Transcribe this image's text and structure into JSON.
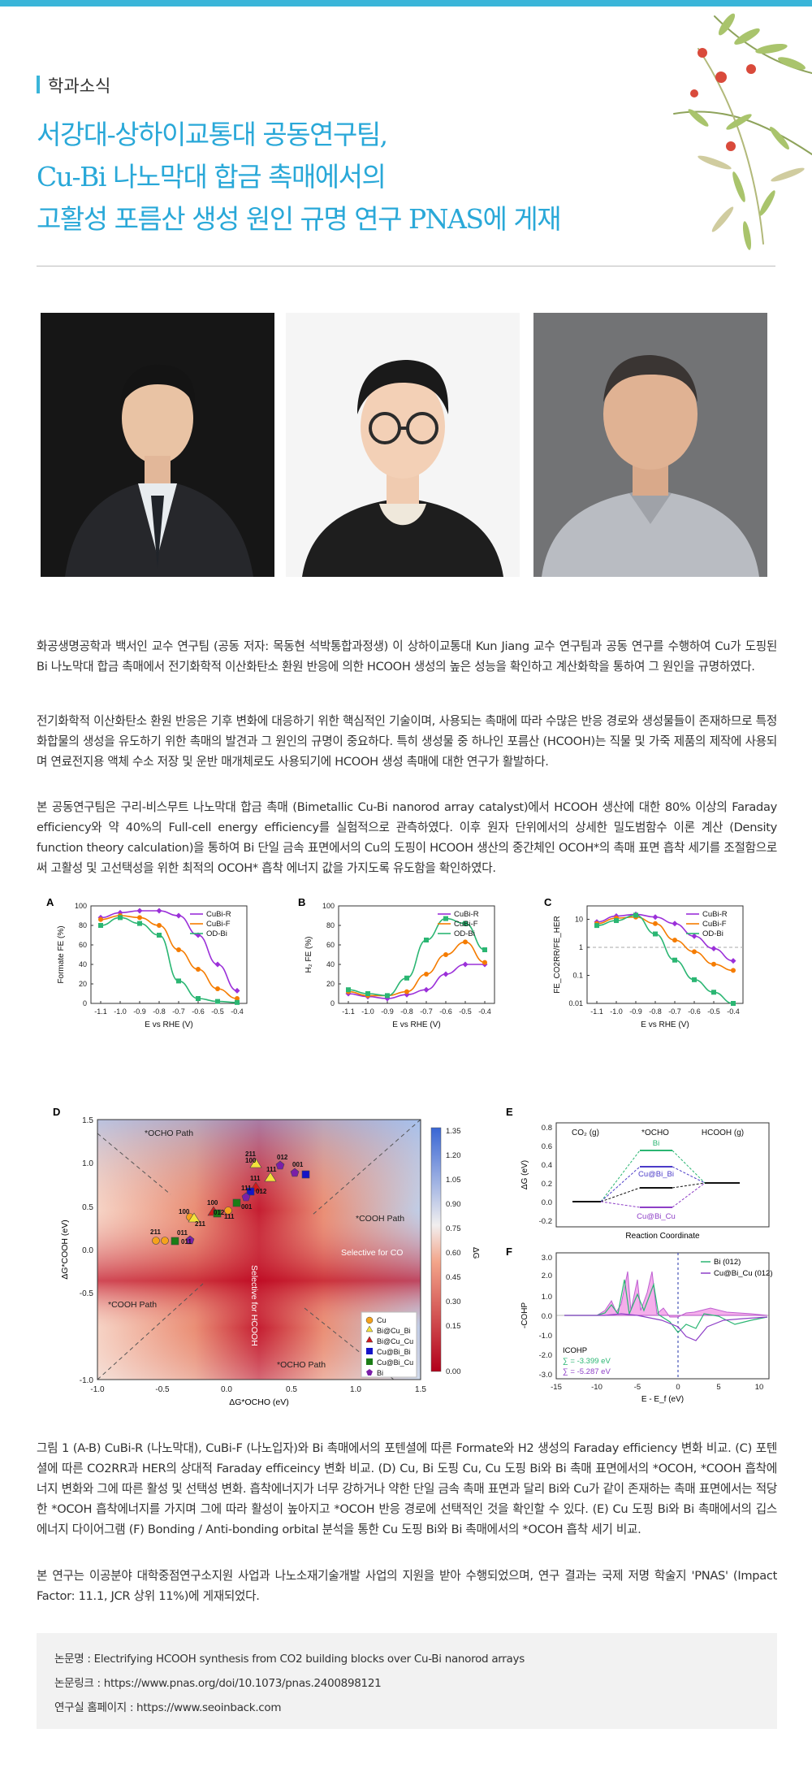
{
  "header": {
    "section_label": "학과소식",
    "title_lines": [
      "서강대-상하이교통대 공동연구팀,",
      "Cu-Bi 나노막대 합금 촉매에서의",
      "고활성 포름산 생성 원인 규명 연구 PNAS에 게재"
    ]
  },
  "paragraphs": [
    "화공생명공학과 백서인 교수 연구팀 (공동 저자: 목동현 석박통합과정생) 이 상하이교통대 Kun Jiang 교수 연구팀과 공동 연구를 수행하여 Cu가 도핑된 Bi 나노막대 합금 촉매에서 전기화학적 이산화탄소 환원 반응에 의한 HCOOH 생성의 높은 성능을 확인하고 계산화학을 통하여 그 원인을 규명하였다.",
    "전기화학적 이산화탄소 환원 반응은 기후 변화에 대응하기 위한 핵심적인 기술이며, 사용되는 촉매에 따라 수많은 반응 경로와 생성물들이 존재하므로 특정 화합물의 생성을 유도하기 위한 촉매의 발견과 그 원인의 규명이 중요하다. 특히 생성물 중 하나인 포름산 (HCOOH)는 직물 및 가죽 제품의 제작에 사용되며 연료전지용 액체 수소 저장 및 운반 매개체로도 사용되기에 HCOOH 생성 촉매에 대한 연구가 활발하다.",
    "본 공동연구팀은 구리-비스무트 나노막대 합금 촉매 (Bimetallic Cu-Bi nanorod array catalyst)에서 HCOOH 생산에 대한 80% 이상의 Faraday efficiency와 약 40%의 Full-cell energy efficiency를 실험적으로 관측하였다. 이후 원자 단위에서의 상세한 밀도범함수 이론 계산 (Density function theory calculation)을 통하여 Bi 단일 금속 표면에서의 Cu의 도핑이 HCOOH 생산의 중간체인 OCOH*의 촉매 표면 흡착 세기를 조절함으로써 고활성 및 고선택성을 위한 최적의 OCOH* 흡착 에너지 값을 가지도록 유도함을 확인하였다."
  ],
  "caption": "그림 1  (A-B) CuBi-R (나노막대), CuBi-F (나노입자)와 Bi 촉매에서의 포텐셜에 따른 Formate와 H2 생성의 Faraday efficiency 변화 비교. (C) 포텐셜에 따른 CO2RR과 HER의 상대적 Faraday efficeincy 변화 비교. (D) Cu, Bi 도핑 Cu, Cu 도핑 Bi와 Bi 촉매 표면에서의 *OCOH, *COOH 흡착에너지 변화와 그에 따른 활성 및 선택성 변화. 흡착에너지가 너무 강하거나 약한 단일 금속 촉매 표면과 달리 Bi와 Cu가 같이 존재하는 촉매 표면에서는 적당한 *OCOH 흡착에너지를 가지며 그에 따라 활성이 높아지고 *OCOH 반응 경로에 선택적인 것을 확인할 수 있다. (E) Cu 도핑 Bi와 Bi 촉매에서의 깁스 에너지 다이어그램 (F) Bonding / Anti-bonding orbital 분석을 통한 Cu 도핑 Bi와 Bi 촉매에서의 *OCOH 흡착 세기 비교.",
  "acknowledgement": "본 연구는 이공분야 대학중점연구소지원 사업과 나노소재기술개발 사업의 지원을 받아 수행되었으며, 연구 결과는 국제 저명 학술지 'PNAS' (Impact Factor: 11.1, JCR 상위 11%)에 게재되었다.",
  "info": {
    "paper": "논문명 : Electrifying HCOOH synthesis from CO2 building blocks over Cu-Bi nanorod arrays",
    "link": "논문링크 : https://www.pnas.org/doi/10.1073/pnas.2400898121",
    "lab": "연구실 홈페이지 : https://www.seoinback.com"
  },
  "figure": {
    "panel_labels": [
      "A",
      "B",
      "C",
      "D",
      "E",
      "F"
    ],
    "legend_series": [
      "CuBi-R",
      "CuBi-F",
      "OD-Bi"
    ],
    "series_colors": {
      "CuBi-R": "#9b30d9",
      "CuBi-F": "#f57c00",
      "OD-Bi": "#2bb673"
    },
    "x_axis_label": "E vs RHE (V)",
    "x_ticks": [
      "-1.1",
      "-1.0",
      "-0.9",
      "-0.8",
      "-0.7",
      "-0.6",
      "-0.5",
      "-0.4"
    ],
    "A": {
      "ylabel": "Formate FE (%)",
      "yticks": [
        "0",
        "20",
        "40",
        "60",
        "80",
        "100"
      ]
    },
    "B": {
      "ylabel": "H₂ FE (%)",
      "yticks": [
        "0",
        "20",
        "40",
        "60",
        "80",
        "100"
      ]
    },
    "C": {
      "ylabel": "FE_CO2RR/FE_HER",
      "yticks": [
        "0.01",
        "0.1",
        "1",
        "10"
      ]
    },
    "D": {
      "xlabel": "ΔG*OCHO (eV)",
      "ylabel": "ΔG*COOH (eV)",
      "xticks": [
        "-1.0",
        "-0.5",
        "0.0",
        "0.5",
        "1.0",
        "1.5"
      ],
      "yticks": [
        "1.5",
        "1.0",
        "0.5",
        "0.0",
        "-0.5",
        "-1.0"
      ],
      "colorbar_label": "ΔG",
      "colorbar_ticks": [
        "1.35",
        "1.20",
        "1.05",
        "0.90",
        "0.75",
        "0.60",
        "0.45",
        "0.30",
        "0.15",
        "0.00"
      ],
      "region_labels": [
        "*OCHO Path",
        "*COOH Path",
        "*COOH Path",
        "*OCHO Path",
        "Selective for CO",
        "Selective for HCOOH"
      ],
      "point_labels": [
        "012",
        "001",
        "211",
        "100",
        "111",
        "111",
        "012",
        "111",
        "100",
        "012",
        "111",
        "001",
        "100",
        "211",
        "211",
        "011",
        "011"
      ],
      "legend": [
        "Cu",
        "Bi@Cu_Bi",
        "Bi@Cu_Cu",
        "Cu@Bi_Bi",
        "Cu@Bi_Cu",
        "Bi"
      ]
    },
    "E": {
      "ylabel": "ΔG (eV)",
      "xlabel": "Reaction Coordinate",
      "yticks": [
        "0.8",
        "0.6",
        "0.4",
        "0.2",
        "0.0",
        "-0.2"
      ],
      "states": [
        "CO₂ (g)",
        "*OCHO",
        "HCOOH (g)"
      ],
      "level_labels": [
        "Bi",
        "Cu@Bi_Bi",
        "Cu@Bi_Cu"
      ]
    },
    "F": {
      "ylabel": "-COHP",
      "xlabel": "E - E_f (eV)",
      "xticks": [
        "-15",
        "-10",
        "-5",
        "0",
        "5",
        "10"
      ],
      "yticks": [
        "3.0",
        "2.0",
        "1.0",
        "0.0",
        "-1.0",
        "-2.0",
        "-3.0"
      ],
      "legend": [
        "Bi (012)",
        "Cu@Bi_Cu (012)"
      ],
      "icohp_title": "ICOHP",
      "icohp_values": [
        "∑ = -3.399 eV",
        "∑ = -5.287 eV"
      ]
    }
  },
  "chart_data": [
    {
      "type": "line",
      "title": "A",
      "xlabel": "E vs RHE (V)",
      "ylabel": "Formate FE (%)",
      "x": [
        -1.1,
        -1.0,
        -0.9,
        -0.8,
        -0.7,
        -0.6,
        -0.5,
        -0.4
      ],
      "ylim": [
        0,
        100
      ],
      "series": [
        {
          "name": "CuBi-R",
          "values": [
            88,
            93,
            95,
            95,
            90,
            70,
            40,
            13
          ]
        },
        {
          "name": "CuBi-F",
          "values": [
            86,
            90,
            88,
            80,
            55,
            35,
            15,
            5
          ]
        },
        {
          "name": "OD-Bi",
          "values": [
            80,
            88,
            82,
            70,
            23,
            5,
            2,
            1
          ]
        }
      ]
    },
    {
      "type": "line",
      "title": "B",
      "xlabel": "E vs RHE (V)",
      "ylabel": "H₂ FE (%)",
      "x": [
        -1.1,
        -1.0,
        -0.9,
        -0.8,
        -0.7,
        -0.6,
        -0.5,
        -0.4
      ],
      "ylim": [
        0,
        100
      ],
      "series": [
        {
          "name": "CuBi-R",
          "values": [
            10,
            7,
            5,
            9,
            14,
            30,
            40,
            40
          ]
        },
        {
          "name": "CuBi-F",
          "values": [
            12,
            8,
            8,
            12,
            30,
            50,
            63,
            42
          ]
        },
        {
          "name": "OD-Bi",
          "values": [
            14,
            10,
            8,
            26,
            65,
            87,
            82,
            55
          ]
        }
      ]
    },
    {
      "type": "line",
      "title": "C",
      "xlabel": "E vs RHE (V)",
      "ylabel": "FE_CO2RR/FE_HER",
      "x": [
        -1.1,
        -1.0,
        -0.9,
        -0.8,
        -0.7,
        -0.6,
        -0.5,
        -0.4
      ],
      "ylim": [
        0.01,
        30
      ],
      "log_scale": true,
      "series": [
        {
          "name": "CuBi-R",
          "values": [
            8,
            13,
            15,
            12,
            7,
            2.5,
            0.9,
            0.33
          ]
        },
        {
          "name": "CuBi-F",
          "values": [
            7,
            11,
            12,
            7,
            1.8,
            0.7,
            0.25,
            0.15
          ]
        },
        {
          "name": "OD-Bi",
          "values": [
            6,
            9,
            14,
            3,
            0.35,
            0.07,
            0.025,
            0.01
          ]
        }
      ]
    }
  ]
}
